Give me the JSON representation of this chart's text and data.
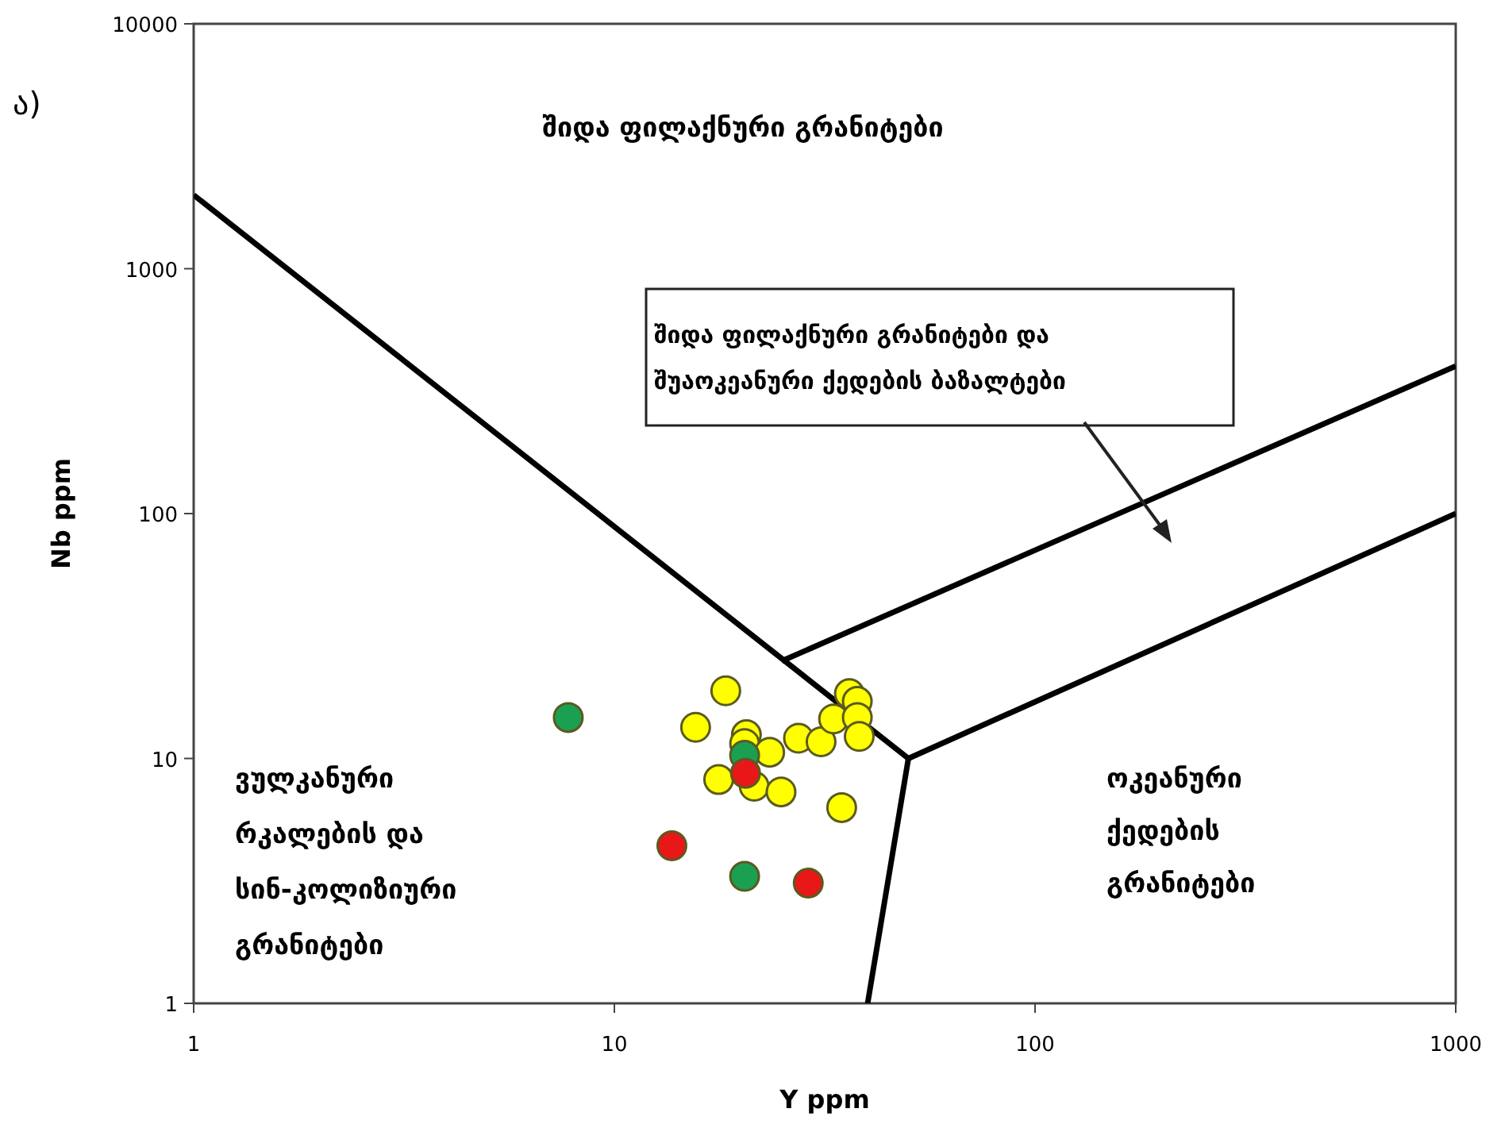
{
  "chart_data": {
    "type": "scatter",
    "xlabel": "Y ppm",
    "ylabel": "Nb ppm",
    "log": "xy",
    "xlim": [
      1,
      1000
    ],
    "ylim": [
      1,
      10000
    ],
    "xticks": [
      1,
      10,
      100,
      1000
    ],
    "yticks": [
      1,
      10,
      100,
      1000,
      10000
    ],
    "grid": false,
    "marker": "circle",
    "annotations": [
      "ა)",
      "შიდა ფილაქნური გრანიტები",
      "შიდა ფილაქნური გრანიტები და\nშუაოკეანური ქედების ბაზალტები",
      "ვულკანური\nრკალების და\nსინ-კოლიზიური\nგრანიტები",
      "ოკეანური\nქედების\nგრანიტები"
    ],
    "series": [
      {
        "type": "line",
        "marker": "none",
        "color": "#000000",
        "x": [
          1,
          50
        ],
        "values": [
          2000,
          10
        ]
      },
      {
        "type": "line",
        "marker": "none",
        "color": "#000000",
        "x": [
          50,
          1000
        ],
        "values": [
          10,
          100
        ]
      },
      {
        "type": "line",
        "marker": "none",
        "color": "#000000",
        "x": [
          50,
          40
        ],
        "values": [
          10,
          1
        ]
      },
      {
        "type": "line",
        "marker": "none",
        "color": "#000000",
        "x": [
          25,
          1000
        ],
        "values": [
          25,
          400
        ]
      },
      {
        "color": "#ffff00",
        "x": [
          18.4,
          15.6,
          20.6,
          20.4,
          23.4,
          17.7,
          21.5,
          24.9,
          27.4,
          31.0,
          33.2,
          36.2,
          37.8,
          37.8,
          38.2,
          34.7
        ],
        "values": [
          18.9,
          13.4,
          12.5,
          11.5,
          10.6,
          8.2,
          7.7,
          7.3,
          12.1,
          11.7,
          14.5,
          18.4,
          17.1,
          14.7,
          12.3,
          6.3
        ]
      },
      {
        "color": "#1aa050",
        "x": [
          7.77,
          20.4,
          20.4
        ],
        "values": [
          14.7,
          10.3,
          3.3
        ]
      },
      {
        "color": "#e81818",
        "x": [
          20.5,
          13.7,
          28.9
        ],
        "values": [
          8.7,
          4.4,
          3.1
        ]
      }
    ]
  }
}
